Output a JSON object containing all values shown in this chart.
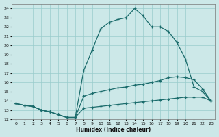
{
  "xlabel": "Humidex (Indice chaleur)",
  "bg_color": "#cce8e8",
  "grid_color": "#99cccc",
  "line_color": "#1a6b6b",
  "xlim": [
    -0.5,
    23.5
  ],
  "ylim": [
    12,
    24.5
  ],
  "xticks": [
    0,
    1,
    2,
    3,
    4,
    5,
    6,
    7,
    8,
    9,
    10,
    11,
    12,
    13,
    14,
    15,
    16,
    17,
    18,
    19,
    20,
    21,
    22,
    23
  ],
  "yticks": [
    12,
    13,
    14,
    15,
    16,
    17,
    18,
    19,
    20,
    21,
    22,
    23,
    24
  ],
  "line_main_x": [
    0,
    1,
    2,
    3,
    4,
    5,
    6,
    7,
    8,
    9,
    10,
    11,
    12,
    13,
    14,
    15,
    16,
    17,
    18,
    19,
    20,
    21,
    22,
    23
  ],
  "line_main_y": [
    13.7,
    13.5,
    13.4,
    13.0,
    12.8,
    12.5,
    12.2,
    12.2,
    17.3,
    19.5,
    21.8,
    22.5,
    22.8,
    23.0,
    24.0,
    23.2,
    22.0,
    22.0,
    21.5,
    20.3,
    18.5,
    15.5,
    15.0,
    14.0
  ],
  "line_mid_x": [
    0,
    1,
    2,
    3,
    4,
    5,
    6,
    7,
    8,
    9,
    10,
    11,
    12,
    13,
    14,
    15,
    16,
    17,
    18,
    19,
    20,
    21,
    22,
    23
  ],
  "line_mid_y": [
    13.7,
    13.5,
    13.4,
    13.0,
    12.8,
    12.5,
    12.2,
    12.2,
    14.5,
    14.8,
    15.0,
    15.2,
    15.4,
    15.5,
    15.7,
    15.8,
    16.0,
    16.2,
    16.5,
    16.6,
    16.5,
    16.3,
    15.3,
    14.0
  ],
  "line_low_x": [
    0,
    1,
    2,
    3,
    4,
    5,
    6,
    7,
    8,
    9,
    10,
    11,
    12,
    13,
    14,
    15,
    16,
    17,
    18,
    19,
    20,
    21,
    22,
    23
  ],
  "line_low_y": [
    13.7,
    13.5,
    13.4,
    13.0,
    12.8,
    12.5,
    12.2,
    12.2,
    13.2,
    13.3,
    13.4,
    13.5,
    13.6,
    13.7,
    13.8,
    13.9,
    14.0,
    14.1,
    14.2,
    14.3,
    14.4,
    14.4,
    14.4,
    14.0
  ]
}
